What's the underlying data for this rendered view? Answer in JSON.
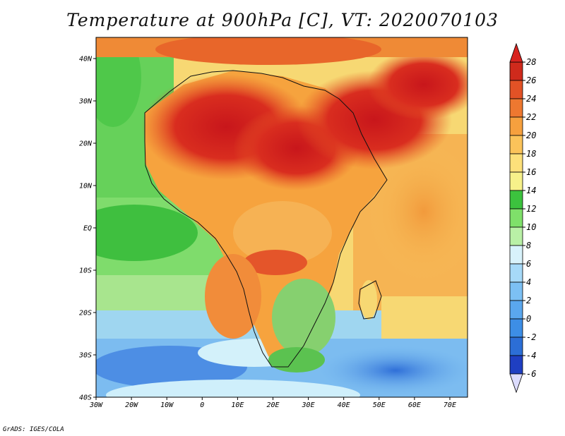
{
  "title": "Temperature at 900hPa [C], VT: 2020070103",
  "credit": "GrADS: IGES/COLA",
  "map": {
    "lon_range": [
      -30,
      75
    ],
    "lat_range": [
      -40,
      45
    ],
    "lon_labels": [
      "30W",
      "20W",
      "10W",
      "0",
      "10E",
      "20E",
      "30E",
      "40E",
      "50E",
      "60E",
      "70E"
    ],
    "lat_labels": [
      "40S",
      "30S",
      "20S",
      "10S",
      "EQ",
      "10N",
      "20N",
      "30N",
      "40N"
    ],
    "variable": "Temperature",
    "level": "900hPa",
    "units": "C"
  },
  "colorbar": {
    "labels": [
      "-6",
      "-4",
      "-2",
      "0",
      "2",
      "4",
      "6",
      "8",
      "10",
      "12",
      "14",
      "16",
      "18",
      "20",
      "22",
      "24",
      "26",
      "28"
    ],
    "colors": [
      "#1a1a7e",
      "#1f3fc2",
      "#2c6ed6",
      "#3d8ee6",
      "#5aa7ee",
      "#7cc0f4",
      "#a6d9f8",
      "#d8f2fb",
      "#b9f0a6",
      "#7fe06a",
      "#3cc23e",
      "#f7f18a",
      "#fde07a",
      "#fbc35a",
      "#f6a03e",
      "#ee7830",
      "#e25226",
      "#cf2a1c",
      "#b8141b"
    ],
    "lower_arrow_color": "#dcdcff",
    "upper_arrow_color": "#d8231f"
  }
}
